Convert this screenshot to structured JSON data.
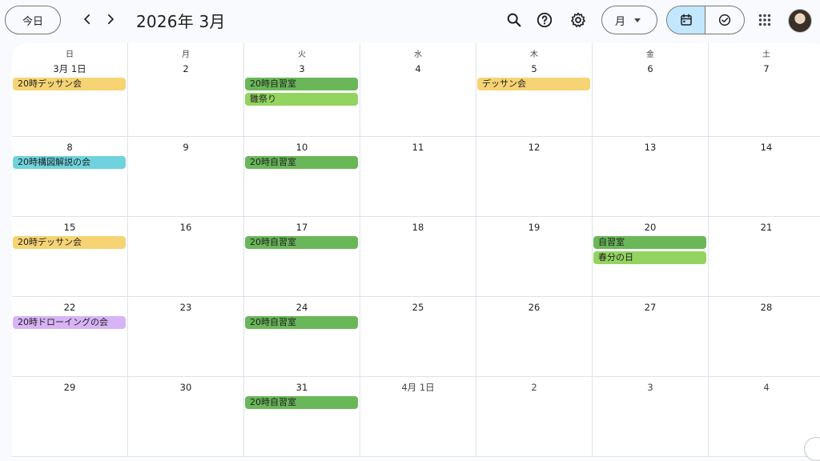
{
  "header": {
    "today_label": "今日",
    "title": "2026年 3月",
    "view_label": "月",
    "prev_icon": "chevron-left-icon",
    "next_icon": "chevron-right-icon"
  },
  "weekdays": [
    "日",
    "月",
    "火",
    "水",
    "木",
    "金",
    "土"
  ],
  "weeks": [
    [
      {
        "label": "3月 1日",
        "other": false,
        "events": [
          {
            "title": "20時デッサン会",
            "color": "#f6d474"
          }
        ]
      },
      {
        "label": "2",
        "other": false,
        "events": []
      },
      {
        "label": "3",
        "other": false,
        "events": [
          {
            "title": "20時自習室",
            "color": "#6ab759"
          },
          {
            "title": "雛祭り",
            "color": "#93d35f"
          }
        ]
      },
      {
        "label": "4",
        "other": false,
        "events": []
      },
      {
        "label": "5",
        "other": false,
        "events": [
          {
            "title": "デッサン会",
            "color": "#f6d474"
          }
        ]
      },
      {
        "label": "6",
        "other": false,
        "events": []
      },
      {
        "label": "7",
        "other": false,
        "events": []
      }
    ],
    [
      {
        "label": "8",
        "other": false,
        "events": [
          {
            "title": "20時構図解説の会",
            "color": "#6fd3dd"
          }
        ]
      },
      {
        "label": "9",
        "other": false,
        "events": []
      },
      {
        "label": "10",
        "other": false,
        "events": [
          {
            "title": "20時自習室",
            "color": "#6ab759"
          }
        ]
      },
      {
        "label": "11",
        "other": false,
        "events": []
      },
      {
        "label": "12",
        "other": false,
        "events": []
      },
      {
        "label": "13",
        "other": false,
        "events": []
      },
      {
        "label": "14",
        "other": false,
        "events": []
      }
    ],
    [
      {
        "label": "15",
        "other": false,
        "events": [
          {
            "title": "20時デッサン会",
            "color": "#f6d474"
          }
        ]
      },
      {
        "label": "16",
        "other": false,
        "events": []
      },
      {
        "label": "17",
        "other": false,
        "events": [
          {
            "title": "20時自習室",
            "color": "#6ab759"
          }
        ]
      },
      {
        "label": "18",
        "other": false,
        "events": []
      },
      {
        "label": "19",
        "other": false,
        "events": []
      },
      {
        "label": "20",
        "other": false,
        "events": [
          {
            "title": "自習室",
            "color": "#6ab759"
          },
          {
            "title": "春分の日",
            "color": "#93d35f"
          }
        ]
      },
      {
        "label": "21",
        "other": false,
        "events": []
      }
    ],
    [
      {
        "label": "22",
        "other": false,
        "events": [
          {
            "title": "20時ドローイングの会",
            "color": "#d7b4f5"
          }
        ]
      },
      {
        "label": "23",
        "other": false,
        "events": []
      },
      {
        "label": "24",
        "other": false,
        "events": [
          {
            "title": "20時自習室",
            "color": "#6ab759"
          }
        ]
      },
      {
        "label": "25",
        "other": false,
        "events": []
      },
      {
        "label": "26",
        "other": false,
        "events": []
      },
      {
        "label": "27",
        "other": false,
        "events": []
      },
      {
        "label": "28",
        "other": false,
        "events": []
      }
    ],
    [
      {
        "label": "29",
        "other": false,
        "events": []
      },
      {
        "label": "30",
        "other": false,
        "events": []
      },
      {
        "label": "31",
        "other": false,
        "events": [
          {
            "title": "20時自習室",
            "color": "#6ab759"
          }
        ]
      },
      {
        "label": "4月 1日",
        "other": true,
        "events": []
      },
      {
        "label": "2",
        "other": true,
        "events": []
      },
      {
        "label": "3",
        "other": true,
        "events": []
      },
      {
        "label": "4",
        "other": true,
        "events": []
      }
    ]
  ]
}
